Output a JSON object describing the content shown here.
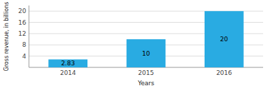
{
  "chart_data": {
    "type": "bar",
    "categories": [
      "2014",
      "2015",
      "2016"
    ],
    "values": [
      2.83,
      10,
      20
    ],
    "color": "#29ABE2",
    "xlabel": "Years",
    "ylabel": "Gross revenue, in billions",
    "ylim": [
      0,
      22
    ],
    "yticks": [
      4,
      8,
      12,
      16,
      20
    ],
    "grid": true,
    "data_labels": true
  }
}
